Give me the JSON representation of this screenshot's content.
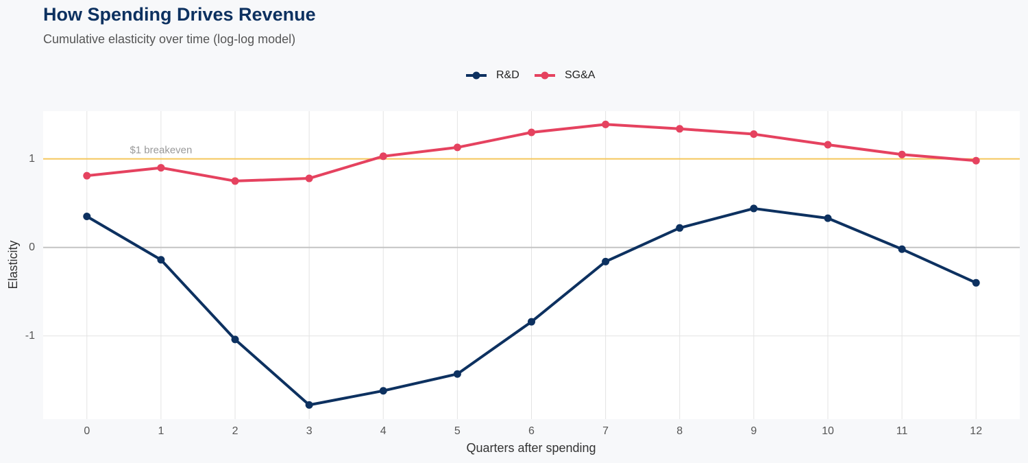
{
  "chart_data": {
    "type": "line",
    "title": "How Spending Drives Revenue",
    "subtitle": "Cumulative elasticity over time (log-log model)",
    "x_label": "Quarters after spending",
    "y_label": "Elasticity",
    "x": [
      0,
      1,
      2,
      3,
      4,
      5,
      6,
      7,
      8,
      9,
      10,
      11,
      12
    ],
    "series": [
      {
        "name": "R&D",
        "color": "#0d3160",
        "values": [
          0.35,
          -0.14,
          -1.04,
          -1.78,
          -1.62,
          -1.43,
          -0.84,
          -0.16,
          0.22,
          0.44,
          0.33,
          -0.02,
          -0.4
        ]
      },
      {
        "name": "SG&A",
        "color": "#e5425f",
        "values": [
          0.81,
          0.9,
          0.75,
          0.78,
          1.03,
          1.13,
          1.3,
          1.39,
          1.34,
          1.28,
          1.16,
          1.05,
          0.98
        ]
      }
    ],
    "xlim": [
      -0.59,
      12.59
    ],
    "xticks": [
      0,
      1,
      2,
      3,
      4,
      5,
      6,
      7,
      8,
      9,
      10,
      11,
      12
    ],
    "ylim": [
      -1.94,
      1.54
    ],
    "yticks": [
      -1,
      0,
      1
    ],
    "grid": true,
    "legend": "top",
    "reference_line": {
      "value": 1,
      "color": "#f5c65a",
      "label": "$1 breakeven",
      "label_x": 1
    }
  }
}
